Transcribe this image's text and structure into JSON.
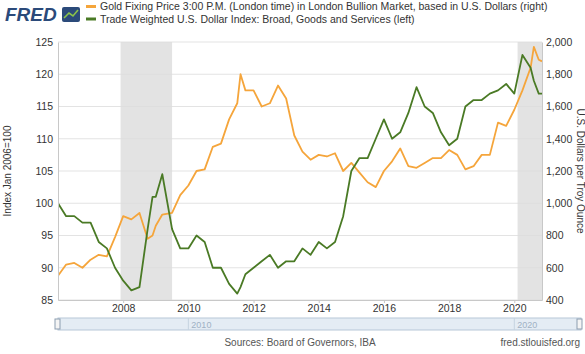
{
  "chart_data": {
    "type": "line",
    "logo": "FRED",
    "source": "Sources: Board of Governors, IBA",
    "url": "fred.stlouisfed.org",
    "y_label": "Index Jan 2006=100",
    "y2_label": "U.S. Dollars per Troy Ounce",
    "x": [
      2006.0,
      2006.25,
      2006.5,
      2006.75,
      2007.0,
      2007.25,
      2007.5,
      2007.75,
      2008.0,
      2008.25,
      2008.5,
      2008.75,
      2008.9,
      2009.0,
      2009.2,
      2009.5,
      2009.75,
      2010.0,
      2010.25,
      2010.5,
      2010.75,
      2011.0,
      2011.25,
      2011.5,
      2011.6,
      2011.75,
      2012.0,
      2012.25,
      2012.5,
      2012.75,
      2013.0,
      2013.25,
      2013.5,
      2013.75,
      2014.0,
      2014.25,
      2014.5,
      2014.75,
      2015.0,
      2015.25,
      2015.5,
      2015.75,
      2016.0,
      2016.25,
      2016.5,
      2016.75,
      2017.0,
      2017.25,
      2017.5,
      2017.75,
      2018.0,
      2018.25,
      2018.5,
      2018.75,
      2019.0,
      2019.25,
      2019.5,
      2019.75,
      2020.0,
      2020.25,
      2020.5,
      2020.6,
      2020.75,
      2020.85
    ],
    "series": [
      {
        "name": "Gold Fixing Price 3:00 P.M. (London time) in London Bullion Market, based in U.S. Dollars (right)",
        "color": "#f5a53b",
        "axis": "y2",
        "values": [
          550,
          620,
          630,
          600,
          650,
          680,
          670,
          790,
          920,
          900,
          940,
          780,
          800,
          860,
          930,
          940,
          1050,
          1110,
          1200,
          1210,
          1350,
          1370,
          1520,
          1620,
          1800,
          1700,
          1700,
          1600,
          1620,
          1730,
          1650,
          1420,
          1320,
          1270,
          1300,
          1290,
          1310,
          1200,
          1250,
          1190,
          1130,
          1100,
          1200,
          1260,
          1340,
          1230,
          1220,
          1250,
          1280,
          1280,
          1330,
          1300,
          1210,
          1230,
          1300,
          1300,
          1500,
          1480,
          1580,
          1700,
          1840,
          1970,
          1890,
          1880
        ]
      },
      {
        "name": "Trade Weighted U.S. Dollar Index: Broad, Goods and Services (left)",
        "color": "#4a7a25",
        "values": [
          100,
          98,
          98,
          97,
          97,
          94,
          93,
          90,
          88,
          86.5,
          87,
          96,
          101,
          101,
          104.5,
          96,
          93,
          93,
          95,
          94,
          90,
          90,
          87.5,
          86,
          87,
          89,
          90,
          91,
          92,
          90,
          91,
          91,
          93,
          92,
          94,
          93,
          94,
          98,
          105,
          107,
          107,
          110,
          113,
          110,
          111,
          114,
          118,
          115,
          114,
          111,
          109,
          110,
          115,
          116,
          116,
          117,
          117.5,
          118.5,
          117,
          123,
          121,
          119,
          117,
          117
        ]
      }
    ],
    "recessions": [
      [
        2007.92,
        2009.5
      ],
      [
        2020.1,
        2020.85
      ]
    ],
    "xlim": [
      2006.0,
      2020.85
    ],
    "xticks": [
      2008,
      2010,
      2012,
      2014,
      2016,
      2018,
      2020
    ],
    "ylim": [
      85,
      125
    ],
    "yticks": [
      85,
      90,
      95,
      100,
      105,
      110,
      115,
      120,
      125
    ],
    "y2lim": [
      400,
      2000
    ],
    "y2ticks": [
      400,
      600,
      800,
      {
        "value": 1000,
        "label": "1,000"
      },
      {
        "value": 1200,
        "label": "1,200"
      },
      {
        "value": 1400,
        "label": "1,400"
      },
      {
        "value": 1600,
        "label": "1,600"
      },
      {
        "value": 1800,
        "label": "1,800"
      },
      {
        "value": 2000,
        "label": "2,000"
      }
    ],
    "navigator_ticks": [
      2010,
      2020
    ],
    "grid": true
  }
}
